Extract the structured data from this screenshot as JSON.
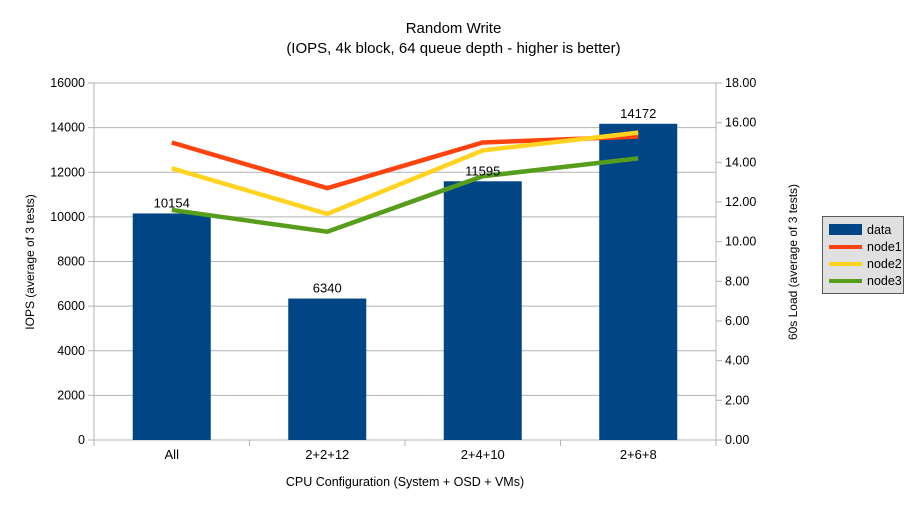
{
  "title": {
    "line1": "Random Write",
    "line2": "(IOPS, 4k block, 64 queue depth - higher is better)"
  },
  "chart_data": {
    "type": "bar",
    "subtype": "combo-bar-line-dual-axis",
    "categories": [
      "All",
      "2+2+12",
      "2+4+10",
      "2+6+8"
    ],
    "bar_series": {
      "name": "data",
      "axis": "left",
      "color": "#004586",
      "values": [
        10154,
        6340,
        11595,
        14172
      ],
      "labels": [
        "10154",
        "6340",
        "11595",
        "14172"
      ]
    },
    "line_series": [
      {
        "name": "node1",
        "axis": "right",
        "color": "#FF420E",
        "values": [
          15.0,
          12.7,
          15.0,
          15.3
        ]
      },
      {
        "name": "node2",
        "axis": "right",
        "color": "#FFD320",
        "values": [
          13.7,
          11.4,
          14.6,
          15.5
        ]
      },
      {
        "name": "node3",
        "axis": "right",
        "color": "#579D1C",
        "values": [
          11.6,
          10.5,
          13.3,
          14.2
        ]
      }
    ],
    "axes": {
      "left": {
        "title": "IOPS (average of 3 tests)",
        "min": 0,
        "max": 16000,
        "step": 2000,
        "tick_labels": [
          "0",
          "2000",
          "4000",
          "6000",
          "8000",
          "10000",
          "12000",
          "14000",
          "16000"
        ]
      },
      "right": {
        "title": "60s Load (average of 3 tests)",
        "min": 0,
        "max": 18,
        "step": 2,
        "tick_labels": [
          "0.00",
          "2.00",
          "4.00",
          "6.00",
          "8.00",
          "10.00",
          "12.00",
          "14.00",
          "16.00",
          "18.00"
        ]
      },
      "x": {
        "title": "CPU Configuration (System + OSD + VMs)"
      }
    },
    "grid": "horizontal",
    "legend": {
      "position": "right",
      "items": [
        {
          "label": "data",
          "color": "#004586",
          "marker": "rect"
        },
        {
          "label": "node1",
          "color": "#FF420E",
          "marker": "line"
        },
        {
          "label": "node2",
          "color": "#FFD320",
          "marker": "line"
        },
        {
          "label": "node3",
          "color": "#579D1C",
          "marker": "line"
        }
      ]
    }
  },
  "colors": {
    "bar": "#004586",
    "grid": "#b3b3b3",
    "axis": "#b3b3b3",
    "text": "#000000",
    "legend_bg": "#e0e0e0",
    "legend_border": "#595959"
  }
}
